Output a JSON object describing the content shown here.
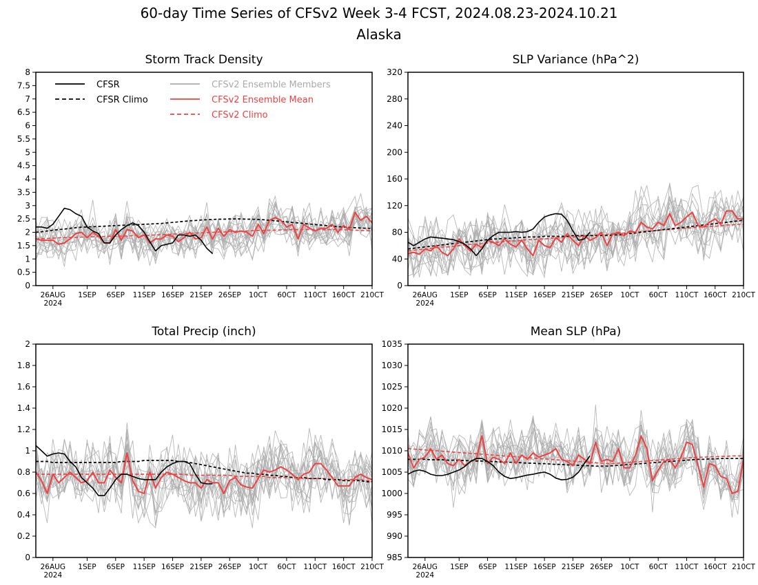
{
  "figure": {
    "title": "60-day Time Series of CFSv2 Week 3-4 FCST, 2024.08.23-2024.10.21",
    "subtitle": "Alaska"
  },
  "colors": {
    "cfsr": "#000000",
    "cfsr_climo": "#000000",
    "members": "#aaaaaa",
    "ens_mean": "#f04040",
    "cfsv2_climo": "#f04040"
  },
  "legend": {
    "cfsr": "CFSR",
    "cfsr_climo": "CFSR Climo",
    "members": "CFSv2 Ensemble Members",
    "ens_mean": "CFSv2 Ensemble Mean",
    "cfsv2_climo": "CFSv2 Climo"
  },
  "x_axis": {
    "tick_days": [
      3,
      9,
      14,
      19,
      24,
      29,
      34,
      39,
      44,
      49,
      54,
      59
    ],
    "tick_labels": [
      "26AUG",
      "1SEP",
      "6SEP",
      "11SEP",
      "16SEP",
      "21SEP",
      "26SEP",
      "1OCT",
      "6OCT",
      "11OCT",
      "16OCT",
      "21OCT"
    ],
    "tick_text": [
      "26AUG",
      "1SEP",
      "6SEP",
      "11SEP",
      "16SEP",
      "21SEP",
      "26SEP",
      "10CT",
      "60CT",
      "110CT",
      "160CT",
      "210CT"
    ],
    "year_label": "2024"
  },
  "chart_data": [
    {
      "type": "line",
      "title": "Storm Track Density",
      "x_dates": "2024-08-23 to 2024-10-21 (daily)",
      "ylim": [
        0,
        8
      ],
      "yticks": [
        0,
        0.5,
        1,
        1.5,
        2,
        2.5,
        3,
        3.5,
        4,
        4.5,
        5,
        5.5,
        6,
        6.5,
        7,
        7.5,
        8
      ],
      "ytick_labels": [
        "0",
        "0.5",
        "1",
        "1.5",
        "2",
        "2.5",
        "3",
        "3.5",
        "4",
        "4.5",
        "5",
        "5.5",
        "6",
        "6.5",
        "7",
        "7.5",
        "8"
      ],
      "show_legend": true,
      "cfsr": [
        2.2,
        2.2,
        2.15,
        2.3,
        2.6,
        2.9,
        2.85,
        2.7,
        2.6,
        2.2,
        2.05,
        1.95,
        1.6,
        1.6,
        1.9,
        2.1,
        2.25,
        2.35,
        2.25,
        2.0,
        1.65,
        1.3,
        1.5,
        1.55,
        1.6,
        1.9,
        1.9,
        1.85,
        1.9,
        1.7,
        1.4,
        1.2
      ],
      "cfsr_climo": [
        2.0,
        2.02,
        2.05,
        2.08,
        2.1,
        2.12,
        2.15,
        2.17,
        2.19,
        2.2,
        2.21,
        2.22,
        2.23,
        2.24,
        2.25,
        2.26,
        2.27,
        2.28,
        2.29,
        2.3,
        2.31,
        2.32,
        2.33,
        2.35,
        2.37,
        2.39,
        2.41,
        2.43,
        2.44,
        2.46,
        2.47,
        2.48,
        2.49,
        2.49,
        2.5,
        2.5,
        2.5,
        2.49,
        2.49,
        2.48,
        2.47,
        2.45,
        2.43,
        2.41,
        2.39,
        2.37,
        2.35,
        2.33,
        2.31,
        2.29,
        2.27,
        2.25,
        2.23,
        2.21,
        2.2,
        2.18,
        2.17,
        2.16,
        2.15,
        2.15
      ],
      "ens_mean": [
        1.75,
        1.7,
        1.7,
        1.7,
        1.55,
        1.6,
        1.75,
        1.95,
        2.0,
        1.8,
        2.0,
        1.85,
        1.6,
        1.6,
        2.1,
        1.7,
        2.1,
        2.05,
        1.8,
        1.9,
        1.6,
        1.75,
        1.75,
        1.9,
        1.85,
        1.65,
        1.8,
        2.0,
        1.75,
        1.8,
        2.2,
        1.75,
        2.15,
        1.85,
        2.1,
        2.0,
        2.05,
        2.0,
        1.85,
        2.3,
        1.95,
        2.45,
        2.55,
        2.45,
        2.2,
        2.3,
        1.75,
        2.3,
        2.15,
        2.05,
        2.15,
        2.15,
        2.3,
        2.0,
        2.25,
        2.1,
        2.75,
        2.45,
        2.6,
        2.35
      ],
      "cfsv2_climo": [
        1.75,
        1.76,
        1.77,
        1.78,
        1.79,
        1.8,
        1.81,
        1.81,
        1.82,
        1.82,
        1.83,
        1.84,
        1.84,
        1.85,
        1.85,
        1.86,
        1.86,
        1.87,
        1.87,
        1.88,
        1.89,
        1.9,
        1.91,
        1.92,
        1.93,
        1.94,
        1.95,
        1.96,
        1.97,
        1.98,
        1.99,
        2.0,
        2.01,
        2.01,
        2.02,
        2.03,
        2.04,
        2.05,
        2.06,
        2.07,
        2.07,
        2.08,
        2.08,
        2.09,
        2.09,
        2.1,
        2.1,
        2.1,
        2.1,
        2.1,
        2.1,
        2.1,
        2.1,
        2.1,
        2.09,
        2.09,
        2.08,
        2.07,
        2.06,
        2.05
      ],
      "members_approx": {
        "center": "ens_mean",
        "spread": 1.05,
        "min": 0.05,
        "count": 16
      }
    },
    {
      "type": "line",
      "title": "SLP Variance (hPa^2)",
      "x_dates": "2024-08-23 to 2024-10-21 (daily)",
      "ylim": [
        0,
        320
      ],
      "yticks": [
        0,
        40,
        80,
        120,
        160,
        200,
        240,
        280,
        320
      ],
      "ytick_labels": [
        "0",
        "40",
        "80",
        "120",
        "160",
        "200",
        "240",
        "280",
        "320"
      ],
      "show_legend": false,
      "cfsr": [
        65,
        60,
        65,
        70,
        73,
        72,
        71,
        70,
        69,
        66,
        62,
        55,
        45,
        55,
        68,
        75,
        80,
        80,
        80,
        81,
        80,
        81,
        85,
        95,
        103,
        106,
        108,
        107,
        98,
        82,
        68,
        70,
        80
      ],
      "cfsr_climo": [
        55,
        56,
        57,
        58,
        59,
        60,
        61,
        62,
        63,
        64,
        65,
        66,
        67,
        68,
        69,
        70,
        70,
        71,
        71,
        72,
        72,
        73,
        73,
        73,
        74,
        74,
        74,
        74,
        74,
        75,
        75,
        75,
        75,
        75,
        75,
        75,
        76,
        76,
        77,
        78,
        79,
        80,
        81,
        82,
        83,
        84,
        85,
        86,
        87,
        88,
        89,
        90,
        91,
        92,
        93,
        94,
        95,
        96,
        97,
        98
      ],
      "ens_mean": [
        48,
        50,
        47,
        55,
        52,
        60,
        50,
        45,
        55,
        70,
        60,
        52,
        62,
        57,
        68,
        65,
        60,
        70,
        62,
        58,
        68,
        55,
        45,
        68,
        60,
        57,
        72,
        65,
        78,
        68,
        60,
        75,
        68,
        72,
        80,
        60,
        77,
        80,
        75,
        82,
        80,
        95,
        88,
        85,
        95,
        90,
        108,
        90,
        95,
        103,
        110,
        90,
        88,
        95,
        100,
        92,
        112,
        112,
        100,
        100
      ],
      "cfsv2_climo": [
        52,
        53,
        54,
        55,
        56,
        57,
        58,
        58,
        59,
        60,
        61,
        62,
        62,
        63,
        64,
        65,
        65,
        66,
        67,
        67,
        68,
        69,
        69,
        70,
        70,
        71,
        72,
        72,
        73,
        73,
        74,
        74,
        75,
        76,
        76,
        77,
        78,
        78,
        79,
        80,
        80,
        81,
        82,
        82,
        83,
        84,
        84,
        85,
        86,
        86,
        87,
        88,
        88,
        89,
        89,
        90,
        91,
        91,
        92,
        92
      ],
      "members_approx": {
        "center": "ens_mean",
        "spread": 60,
        "min": 12,
        "count": 16
      }
    },
    {
      "type": "line",
      "title": "Total Precip (inch)",
      "x_dates": "2024-08-23 to 2024-10-21 (daily)",
      "ylim": [
        0,
        2
      ],
      "yticks": [
        0,
        0.2,
        0.4,
        0.6,
        0.8,
        1,
        1.2,
        1.4,
        1.6,
        1.8,
        2
      ],
      "ytick_labels": [
        "0",
        "0.2",
        "0.4",
        "0.6",
        "0.8",
        "1",
        "1.2",
        "1.4",
        "1.6",
        "1.8",
        "2"
      ],
      "show_legend": false,
      "cfsr": [
        1.05,
        1.0,
        0.95,
        0.97,
        0.98,
        0.97,
        0.9,
        0.85,
        0.75,
        0.7,
        0.65,
        0.58,
        0.58,
        0.65,
        0.73,
        0.78,
        0.78,
        0.76,
        0.74,
        0.73,
        0.73,
        0.73,
        0.8,
        0.85,
        0.88,
        0.9,
        0.9,
        0.88,
        0.78,
        0.7,
        0.69,
        0.69
      ],
      "cfsr_climo": [
        0.9,
        0.9,
        0.9,
        0.89,
        0.89,
        0.89,
        0.89,
        0.89,
        0.89,
        0.89,
        0.89,
        0.89,
        0.89,
        0.89,
        0.89,
        0.9,
        0.9,
        0.9,
        0.9,
        0.91,
        0.91,
        0.91,
        0.91,
        0.91,
        0.91,
        0.9,
        0.9,
        0.89,
        0.88,
        0.87,
        0.86,
        0.85,
        0.84,
        0.83,
        0.82,
        0.81,
        0.8,
        0.79,
        0.79,
        0.78,
        0.78,
        0.77,
        0.77,
        0.76,
        0.76,
        0.75,
        0.75,
        0.75,
        0.74,
        0.74,
        0.74,
        0.73,
        0.73,
        0.73,
        0.72,
        0.72,
        0.72,
        0.72,
        0.71,
        0.71
      ],
      "ens_mean": [
        0.8,
        0.72,
        0.6,
        0.78,
        0.7,
        0.75,
        0.8,
        0.75,
        0.7,
        0.72,
        0.8,
        0.7,
        0.7,
        0.82,
        0.75,
        0.7,
        0.98,
        0.72,
        0.62,
        0.6,
        0.8,
        0.65,
        0.75,
        0.8,
        0.78,
        0.75,
        0.72,
        0.7,
        0.7,
        0.65,
        0.73,
        0.7,
        0.7,
        0.6,
        0.72,
        0.75,
        0.68,
        0.66,
        0.65,
        0.74,
        0.82,
        0.8,
        0.82,
        0.85,
        0.82,
        0.78,
        0.73,
        0.78,
        0.8,
        0.88,
        0.88,
        0.82,
        0.75,
        0.67,
        0.67,
        0.67,
        0.75,
        0.78,
        0.75,
        0.73
      ],
      "cfsv2_climo": [
        0.78,
        0.78,
        0.78,
        0.78,
        0.78,
        0.78,
        0.78,
        0.78,
        0.78,
        0.78,
        0.78,
        0.78,
        0.78,
        0.78,
        0.78,
        0.78,
        0.78,
        0.78,
        0.78,
        0.78,
        0.78,
        0.78,
        0.78,
        0.78,
        0.78,
        0.78,
        0.78,
        0.77,
        0.77,
        0.77,
        0.77,
        0.77,
        0.77,
        0.77,
        0.77,
        0.76,
        0.76,
        0.76,
        0.76,
        0.76,
        0.76,
        0.75,
        0.75,
        0.75,
        0.75,
        0.75,
        0.75,
        0.74,
        0.74,
        0.74,
        0.74,
        0.74,
        0.73,
        0.73,
        0.73,
        0.73,
        0.73,
        0.73,
        0.72,
        0.72
      ],
      "members_approx": {
        "center": "ens_mean",
        "spread": 0.42,
        "min": 0.22,
        "count": 16
      }
    },
    {
      "type": "line",
      "title": "Mean SLP (hPa)",
      "x_dates": "2024-08-23 to 2024-10-21 (daily)",
      "ylim": [
        985,
        1035
      ],
      "yticks": [
        985,
        990,
        995,
        1000,
        1005,
        1010,
        1015,
        1020,
        1025,
        1030,
        1035
      ],
      "ytick_labels": [
        "985",
        "990",
        "995",
        "1000",
        "1005",
        "1010",
        "1015",
        "1020",
        "1025",
        "1030",
        "1035"
      ],
      "show_legend": false,
      "cfsr": [
        1004.5,
        1005.2,
        1005.5,
        1005.2,
        1004.5,
        1004.2,
        1004.2,
        1004.5,
        1005.0,
        1005.5,
        1006.3,
        1007.5,
        1008.2,
        1008.2,
        1007.5,
        1006.5,
        1005.0,
        1004.0,
        1003.5,
        1003.7,
        1004.0,
        1004.3,
        1004.5,
        1004.8,
        1005.0,
        1004.5,
        1003.6,
        1003.2,
        1003.3,
        1003.8,
        1005.0,
        1007.0,
        1008.8
      ],
      "cfsr_climo": [
        1008.0,
        1008.0,
        1008.0,
        1008.0,
        1007.9,
        1007.9,
        1007.9,
        1007.8,
        1007.8,
        1007.8,
        1007.7,
        1007.7,
        1007.6,
        1007.6,
        1007.5,
        1007.5,
        1007.4,
        1007.4,
        1007.3,
        1007.3,
        1007.2,
        1007.1,
        1007.1,
        1007.0,
        1007.0,
        1006.9,
        1006.8,
        1006.8,
        1006.7,
        1006.7,
        1006.6,
        1006.5,
        1006.5,
        1006.4,
        1006.4,
        1006.4,
        1006.5,
        1006.6,
        1006.7,
        1006.8,
        1006.9,
        1007.0,
        1007.1,
        1007.2,
        1007.3,
        1007.4,
        1007.5,
        1007.6,
        1007.7,
        1007.8,
        1007.9,
        1008.0,
        1008.0,
        1008.1,
        1008.1,
        1008.2,
        1008.2,
        1008.2,
        1008.2,
        1008.2
      ],
      "ens_mean": [
        1009.5,
        1006.0,
        1008.0,
        1008.5,
        1010.5,
        1008.0,
        1009.0,
        1007.0,
        1006.5,
        1008.0,
        1006.5,
        1007.5,
        1008.0,
        1013.5,
        1007.0,
        1008.5,
        1008.0,
        1007.0,
        1009.5,
        1007.0,
        1009.0,
        1008.0,
        1009.5,
        1008.5,
        1009.0,
        1009.5,
        1010.5,
        1008.0,
        1007.5,
        1006.5,
        1009.0,
        1008.0,
        1007.0,
        1012.0,
        1007.5,
        1008.0,
        1007.5,
        1010.5,
        1006.0,
        1006.0,
        1009.0,
        1013.5,
        1010.5,
        1003.0,
        1005.5,
        1007.5,
        1008.0,
        1006.0,
        1008.5,
        1012.0,
        1011.5,
        1006.5,
        1001.5,
        1007.0,
        1006.5,
        1004.0,
        1003.5,
        1000.0,
        1000.5,
        1008.0
      ],
      "cfsv2_climo": [
        1010.5,
        1010.4,
        1010.3,
        1010.2,
        1010.1,
        1010.0,
        1009.9,
        1009.8,
        1009.7,
        1009.6,
        1009.5,
        1009.4,
        1009.3,
        1009.2,
        1009.1,
        1009.0,
        1008.9,
        1008.8,
        1008.7,
        1008.6,
        1008.5,
        1008.4,
        1008.3,
        1008.2,
        1008.1,
        1008.0,
        1007.9,
        1007.8,
        1007.7,
        1007.6,
        1007.5,
        1007.4,
        1007.3,
        1007.2,
        1007.1,
        1007.0,
        1007.0,
        1007.1,
        1007.2,
        1007.3,
        1007.4,
        1007.5,
        1007.6,
        1007.7,
        1007.8,
        1007.9,
        1008.0,
        1008.1,
        1008.2,
        1008.3,
        1008.4,
        1008.5,
        1008.5,
        1008.6,
        1008.6,
        1008.7,
        1008.7,
        1008.8,
        1008.8,
        1008.8
      ],
      "members_approx": {
        "center": "ens_mean",
        "spread": 9,
        "min": 985,
        "count": 16
      }
    }
  ]
}
